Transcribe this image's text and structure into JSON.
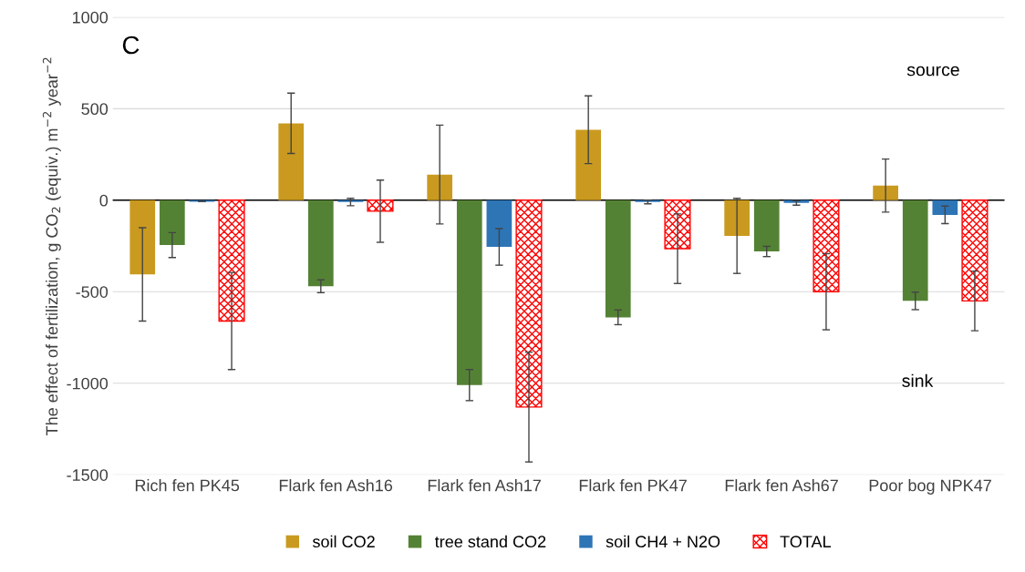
{
  "chart_data": {
    "type": "bar",
    "ylabel": "The effect of fertilization, g CO$_{2}$ (equiv.) m$^{−2}$ year$^{−2}$",
    "categories": [
      "Rich fen PK45",
      "Flark fen Ash16",
      "Flark fen Ash17",
      "Flark fen PK47",
      "Flark fen Ash67",
      "Poor bog NPK47"
    ],
    "series": [
      {
        "name": "soil CO2",
        "color": "#c99a1f",
        "values": [
          -405,
          420,
          140,
          385,
          -195,
          80
        ],
        "errors": [
          255,
          165,
          270,
          185,
          205,
          145
        ]
      },
      {
        "name": "tree stand CO2",
        "color": "#548235",
        "values": [
          -245,
          -470,
          -1010,
          -640,
          -280,
          -550
        ],
        "errors": [
          68,
          35,
          85,
          40,
          28,
          48
        ]
      },
      {
        "name": "soil CH4 + N2O",
        "color": "#2e75b6",
        "values": [
          -8,
          -10,
          -255,
          -10,
          -15,
          -80
        ],
        "errors": [
          null,
          20,
          100,
          10,
          12,
          48
        ]
      },
      {
        "name": "TOTAL",
        "color": "#ff0000",
        "values": [
          -660,
          -60,
          -1130,
          -265,
          -500,
          -550
        ],
        "errors": [
          265,
          170,
          300,
          190,
          208,
          163
        ]
      }
    ],
    "ylim": [
      -1500,
      1000
    ],
    "yticks": [
      -1500,
      -1000,
      -500,
      0,
      500,
      1000
    ],
    "grid": "y",
    "legend": "bottom",
    "annotations": [
      "C",
      "source",
      "sink"
    ]
  }
}
